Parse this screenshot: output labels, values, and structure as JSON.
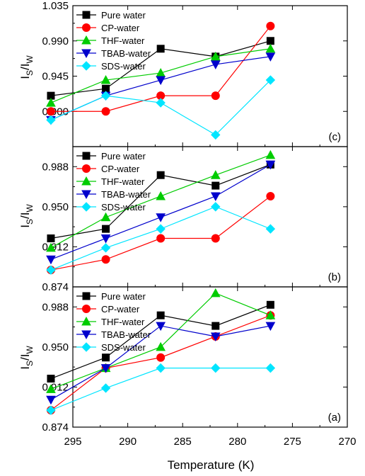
{
  "chart_data": [
    {
      "type": "line",
      "panel_label": "(c)",
      "ylim": [
        0.855,
        1.035
      ],
      "yticks": [
        0.9,
        0.945,
        0.99,
        1.035
      ],
      "ytick_labels": [
        "0.900",
        "0.945",
        "0.990",
        "1.035"
      ],
      "x": [
        297,
        292,
        287,
        282,
        277
      ],
      "series": [
        {
          "name": "Pure water",
          "color": "#000000",
          "marker": "square",
          "values": [
            0.92,
            0.929,
            0.98,
            0.97,
            0.99
          ]
        },
        {
          "name": "CP-water",
          "color": "#ff0000",
          "marker": "circle",
          "values": [
            0.9,
            0.9,
            0.92,
            0.92,
            1.009
          ]
        },
        {
          "name": "THF-water",
          "color": "#00cc00",
          "marker": "triangle-up",
          "values": [
            0.911,
            0.94,
            0.949,
            0.97,
            0.98
          ]
        },
        {
          "name": "TBAB-water",
          "color": "#0000cc",
          "marker": "triangle-down",
          "values": [
            0.889,
            0.92,
            0.94,
            0.96,
            0.97
          ]
        },
        {
          "name": "SDS-water",
          "color": "#00e5ff",
          "marker": "diamond",
          "values": [
            0.889,
            0.92,
            0.911,
            0.87,
            0.94
          ]
        }
      ],
      "legend": "top-left"
    },
    {
      "type": "line",
      "panel_label": "(b)",
      "ylim": [
        0.874,
        1.007
      ],
      "yticks": [
        0.874,
        0.912,
        0.95,
        0.988
      ],
      "ytick_labels": [
        "0.874",
        "0.912",
        "0.950",
        "0.988"
      ],
      "x": [
        297,
        292,
        287,
        282,
        277
      ],
      "series": [
        {
          "name": "Pure water",
          "color": "#000000",
          "marker": "square",
          "values": [
            0.92,
            0.929,
            0.98,
            0.97,
            0.99
          ]
        },
        {
          "name": "CP-water",
          "color": "#ff0000",
          "marker": "circle",
          "values": [
            0.89,
            0.9,
            0.92,
            0.92,
            0.96
          ]
        },
        {
          "name": "THF-water",
          "color": "#00cc00",
          "marker": "triangle-up",
          "values": [
            0.911,
            0.94,
            0.96,
            0.98,
            0.999
          ]
        },
        {
          "name": "TBAB-water",
          "color": "#0000cc",
          "marker": "triangle-down",
          "values": [
            0.9,
            0.92,
            0.94,
            0.96,
            0.99
          ]
        },
        {
          "name": "SDS-water",
          "color": "#00e5ff",
          "marker": "diamond",
          "values": [
            0.89,
            0.911,
            0.929,
            0.95,
            0.929
          ]
        }
      ],
      "legend": "top-left"
    },
    {
      "type": "line",
      "panel_label": "(a)",
      "ylim": [
        0.874,
        1.007
      ],
      "yticks": [
        0.874,
        0.912,
        0.95,
        0.988
      ],
      "ytick_labels": [
        "0.874",
        "0.912",
        "0.950",
        "0.988"
      ],
      "x": [
        297,
        292,
        287,
        282,
        277
      ],
      "series": [
        {
          "name": "Pure water",
          "color": "#000000",
          "marker": "square",
          "values": [
            0.92,
            0.94,
            0.98,
            0.97,
            0.99
          ]
        },
        {
          "name": "CP-water",
          "color": "#ff0000",
          "marker": "circle",
          "values": [
            0.89,
            0.93,
            0.94,
            0.96,
            0.98
          ]
        },
        {
          "name": "THF-water",
          "color": "#00cc00",
          "marker": "triangle-up",
          "values": [
            0.91,
            0.93,
            0.95,
            1.001,
            0.98
          ]
        },
        {
          "name": "TBAB-water",
          "color": "#0000cc",
          "marker": "triangle-down",
          "values": [
            0.9,
            0.93,
            0.97,
            0.96,
            0.97
          ]
        },
        {
          "name": "SDS-water",
          "color": "#00e5ff",
          "marker": "diamond",
          "values": [
            0.89,
            0.911,
            0.93,
            0.93,
            0.93
          ]
        }
      ],
      "legend": "top-left"
    }
  ],
  "x_axis": {
    "label": "Temperature (K)",
    "xlim": [
      295,
      270
    ],
    "reversed": true,
    "ticks": [
      295,
      290,
      285,
      280,
      275,
      270
    ],
    "tick_labels": [
      "295",
      "290",
      "285",
      "280",
      "275",
      "270"
    ]
  },
  "y_axis_label": {
    "main": "I",
    "sub1": "S",
    "sep": "/I",
    "sub2": "W"
  }
}
